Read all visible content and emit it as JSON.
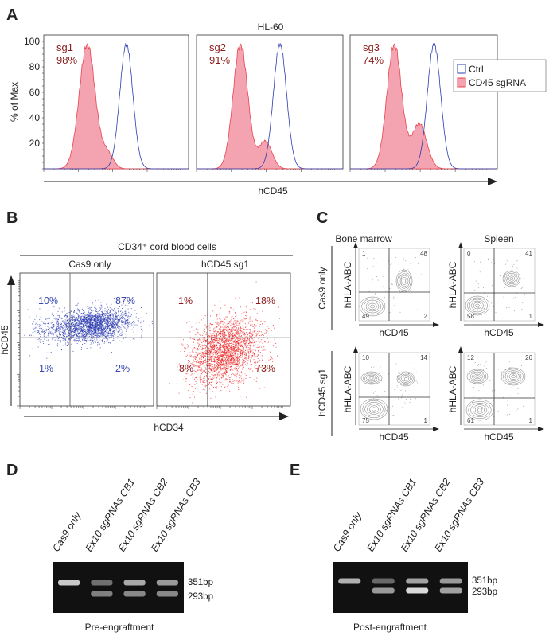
{
  "panels": {
    "A": "A",
    "B": "B",
    "C": "C",
    "D": "D",
    "E": "E"
  },
  "chart_data": [
    {
      "panel": "A",
      "type": "area",
      "title": "HL-60",
      "xlabel": "hCD45",
      "ylabel": "% of Max",
      "ylim": [
        0,
        100
      ],
      "yticks": [
        "20",
        "40",
        "60",
        "80",
        "100"
      ],
      "x_scale": "log",
      "legend": {
        "placement": "right",
        "entries": [
          {
            "name": "Ctrl",
            "color": "#2b3bb0",
            "style": "outline"
          },
          {
            "name": "CD45 sgRNA",
            "color": "#e8434f",
            "fill": "#f4a3b0",
            "style": "filled"
          }
        ]
      },
      "subplots": [
        {
          "label": "sg1",
          "percent": "98%"
        },
        {
          "label": "sg2",
          "percent": "91%"
        },
        {
          "label": "sg3",
          "percent": "74%"
        }
      ],
      "label_color": "#8b1a1a"
    },
    {
      "panel": "B",
      "type": "scatter",
      "title": "CD34⁺ cord blood cells",
      "xlabel": "hCD34",
      "ylabel": "hCD45",
      "x_scale": "log",
      "y_scale": "log",
      "subplots": [
        {
          "label": "Cas9 only",
          "color": "#2b3bb0",
          "text_color": "#3a4ab0",
          "quadrants": {
            "upper_left": "10%",
            "upper_right": "87%",
            "lower_left": "1%",
            "lower_right": "2%"
          }
        },
        {
          "label": "hCD45 sg1",
          "color": "#ee2222",
          "text_color": "#8b1a1a",
          "quadrants": {
            "upper_left": "1%",
            "upper_right": "18%",
            "lower_left": "8%",
            "lower_right": "73%"
          }
        }
      ]
    },
    {
      "panel": "C",
      "type": "contour",
      "xlabel": "hCD45",
      "ylabel": "hHLA-ABC",
      "columns": [
        "Bone marrow",
        "Spleen"
      ],
      "rows": [
        "Cas9 only",
        "hCD45 sg1"
      ],
      "subplots": [
        {
          "row": "Cas9 only",
          "column": "Bone marrow",
          "quadrants": {
            "upper_left": "1",
            "upper_right": "48",
            "lower_left": "49",
            "lower_right": "2"
          }
        },
        {
          "row": "Cas9 only",
          "column": "Spleen",
          "quadrants": {
            "upper_left": "0",
            "upper_right": "41",
            "lower_left": "58",
            "lower_right": "1"
          }
        },
        {
          "row": "hCD45 sg1",
          "column": "Bone marrow",
          "quadrants": {
            "upper_left": "10",
            "upper_right": "14",
            "lower_left": "75",
            "lower_right": "1"
          }
        },
        {
          "row": "hCD45 sg1",
          "column": "Spleen",
          "quadrants": {
            "upper_left": "12",
            "upper_right": "26",
            "lower_left": "61",
            "lower_right": "1"
          }
        }
      ]
    }
  ],
  "gels": [
    {
      "panel": "D",
      "caption": "Pre-engraftment",
      "lanes": [
        "Cas9 only",
        "Ex10 sgRNAs CB1",
        "Ex10 sgRNAs CB2",
        "Ex10 sgRNAs CB3"
      ],
      "markers": [
        "351bp",
        "293bp"
      ],
      "band_intensity": [
        [
          0.9,
          0
        ],
        [
          0.35,
          0.45
        ],
        [
          0.7,
          0.5
        ],
        [
          0.6,
          0.5
        ]
      ]
    },
    {
      "panel": "E",
      "caption": "Post-engraftment",
      "lanes": [
        "Cas9 only",
        "Ex10 sgRNAs CB1",
        "Ex10 sgRNAs CB2",
        "Ex10 sgRNAs CB3"
      ],
      "markers": [
        "351bp",
        "293bp"
      ],
      "band_intensity": [
        [
          0.75,
          0
        ],
        [
          0.3,
          0.6
        ],
        [
          0.65,
          1.0
        ],
        [
          0.6,
          0.65
        ]
      ]
    }
  ]
}
